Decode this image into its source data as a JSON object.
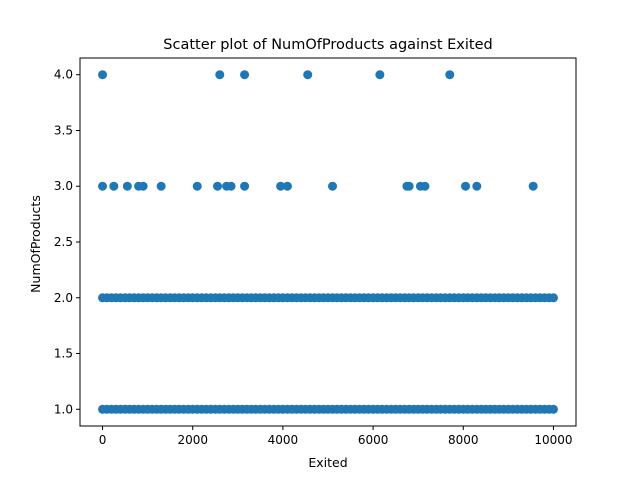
{
  "chart_data": {
    "type": "scatter",
    "title": "Scatter plot of NumOfProducts against Exited",
    "xlabel": "Exited",
    "ylabel": "NumOfProducts",
    "xlim": [
      -500,
      10500
    ],
    "ylim": [
      0.85,
      4.15
    ],
    "xticks": [
      0,
      2000,
      4000,
      6000,
      8000,
      10000
    ],
    "xtick_labels": [
      "0",
      "2000",
      "4000",
      "6000",
      "8000",
      "10000"
    ],
    "yticks": [
      1.0,
      1.5,
      2.0,
      2.5,
      3.0,
      3.5,
      4.0
    ],
    "ytick_labels": [
      "1.0",
      "1.5",
      "2.0",
      "2.5",
      "3.0",
      "3.5",
      "4.0"
    ],
    "grid": false,
    "marker_color": "#1f77b4",
    "series": [
      {
        "x": [
          0,
          2600,
          3150,
          4550,
          6150,
          7700,
          0,
          250,
          550,
          800,
          900,
          1300,
          2100,
          2550,
          2750,
          2850,
          3150,
          3950,
          4100,
          5100,
          6750,
          6800,
          7050,
          7150,
          8050,
          8300,
          9550,
          0,
          100,
          200,
          300,
          400,
          500,
          600,
          700,
          800,
          900,
          1000,
          1100,
          1200,
          1300,
          1400,
          1500,
          1600,
          1700,
          1800,
          1900,
          2000,
          2100,
          2200,
          2300,
          2400,
          2500,
          2600,
          2700,
          2800,
          2900,
          3000,
          3100,
          3200,
          3300,
          3400,
          3500,
          3600,
          3700,
          3800,
          3900,
          4000,
          4100,
          4200,
          4300,
          4400,
          4500,
          4600,
          4700,
          4800,
          4900,
          5000,
          5100,
          5200,
          5300,
          5400,
          5500,
          5600,
          5700,
          5800,
          5900,
          6000,
          6100,
          6200,
          6300,
          6400,
          6500,
          6600,
          6700,
          6800,
          6900,
          7000,
          7100,
          7200,
          7300,
          7400,
          7500,
          7600,
          7700,
          7800,
          7900,
          8000,
          8100,
          8200,
          8300,
          8400,
          8500,
          8600,
          8700,
          8800,
          8900,
          9000,
          9100,
          9200,
          9300,
          9400,
          9500,
          9600,
          9700,
          9800,
          9900,
          10000,
          0,
          100,
          200,
          300,
          400,
          500,
          600,
          700,
          800,
          900,
          1000,
          1100,
          1200,
          1300,
          1400,
          1500,
          1600,
          1700,
          1800,
          1900,
          2000,
          2100,
          2200,
          2300,
          2400,
          2500,
          2600,
          2700,
          2800,
          2900,
          3000,
          3100,
          3200,
          3300,
          3400,
          3500,
          3600,
          3700,
          3800,
          3900,
          4000,
          4100,
          4200,
          4300,
          4400,
          4500,
          4600,
          4700,
          4800,
          4900,
          5000,
          5100,
          5200,
          5300,
          5400,
          5500,
          5600,
          5700,
          5800,
          5900,
          6000,
          6100,
          6200,
          6300,
          6400,
          6500,
          6600,
          6700,
          6800,
          6900,
          7000,
          7100,
          7200,
          7300,
          7400,
          7500,
          7600,
          7700,
          7800,
          7900,
          8000,
          8100,
          8200,
          8300,
          8400,
          8500,
          8600,
          8700,
          8800,
          8900,
          9000,
          9100,
          9200,
          9300,
          9400,
          9500,
          9600,
          9700,
          9800,
          9900,
          10000
        ],
        "y": [
          4,
          4,
          4,
          4,
          4,
          4,
          3,
          3,
          3,
          3,
          3,
          3,
          3,
          3,
          3,
          3,
          3,
          3,
          3,
          3,
          3,
          3,
          3,
          3,
          3,
          3,
          3,
          2,
          2,
          2,
          2,
          2,
          2,
          2,
          2,
          2,
          2,
          2,
          2,
          2,
          2,
          2,
          2,
          2,
          2,
          2,
          2,
          2,
          2,
          2,
          2,
          2,
          2,
          2,
          2,
          2,
          2,
          2,
          2,
          2,
          2,
          2,
          2,
          2,
          2,
          2,
          2,
          2,
          2,
          2,
          2,
          2,
          2,
          2,
          2,
          2,
          2,
          2,
          2,
          2,
          2,
          2,
          2,
          2,
          2,
          2,
          2,
          2,
          2,
          2,
          2,
          2,
          2,
          2,
          2,
          2,
          2,
          2,
          2,
          2,
          2,
          2,
          2,
          2,
          2,
          2,
          2,
          2,
          2,
          2,
          2,
          2,
          2,
          2,
          2,
          2,
          2,
          2,
          2,
          2,
          2,
          2,
          2,
          2,
          2,
          2,
          2,
          2,
          1,
          1,
          1,
          1,
          1,
          1,
          1,
          1,
          1,
          1,
          1,
          1,
          1,
          1,
          1,
          1,
          1,
          1,
          1,
          1,
          1,
          1,
          1,
          1,
          1,
          1,
          1,
          1,
          1,
          1,
          1,
          1,
          1,
          1,
          1,
          1,
          1,
          1,
          1,
          1,
          1,
          1,
          1,
          1,
          1,
          1,
          1,
          1,
          1,
          1,
          1,
          1,
          1,
          1,
          1,
          1,
          1,
          1,
          1,
          1,
          1,
          1,
          1,
          1,
          1,
          1,
          1,
          1,
          1,
          1,
          1,
          1,
          1,
          1,
          1,
          1,
          1,
          1,
          1,
          1,
          1,
          1,
          1,
          1,
          1,
          1,
          1,
          1,
          1,
          1,
          1,
          1,
          1,
          1,
          1,
          1,
          1,
          1,
          1,
          1,
          1
        ]
      }
    ]
  }
}
